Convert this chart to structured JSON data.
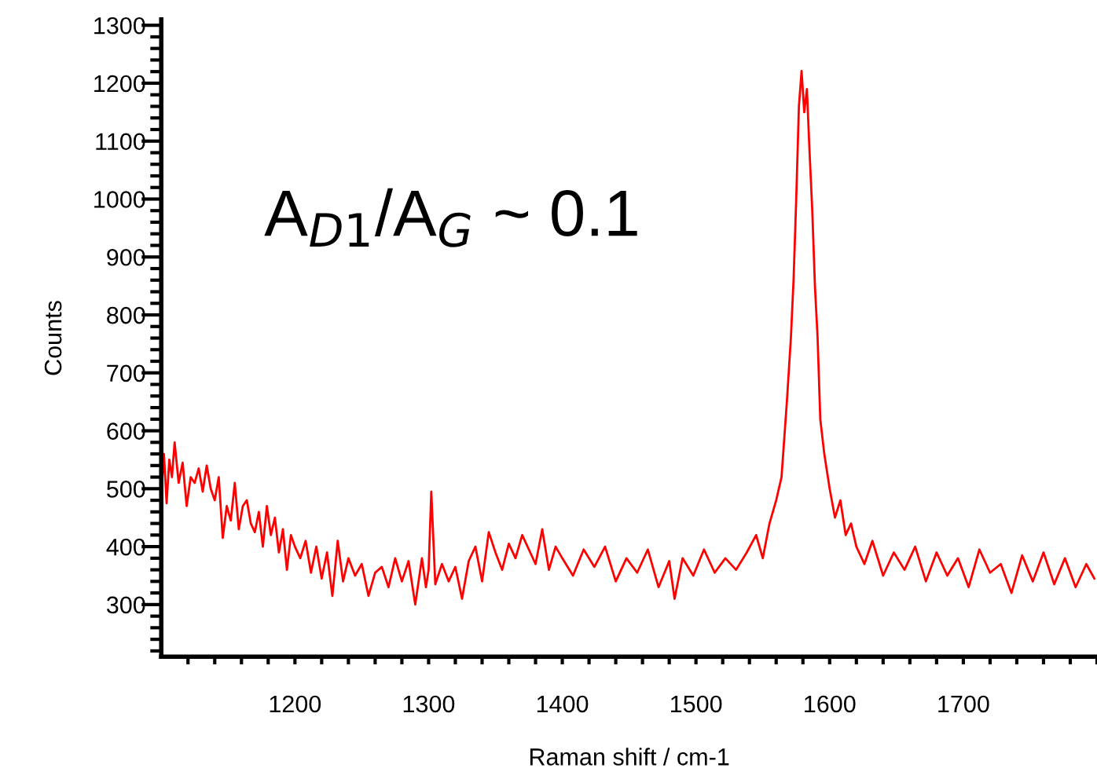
{
  "chart_data": {
    "type": "line",
    "xlabel": "Raman shift / cm-1",
    "ylabel": "Counts",
    "annotations": [
      "A$_{D1}$/A$_{G}$ ~ 0.1"
    ],
    "xlim": [
      1100,
      1800
    ],
    "ylim": [
      210,
      1310
    ],
    "xticks": [
      {
        "value": 1120,
        "label": null
      },
      {
        "value": 1140,
        "label": null
      },
      {
        "value": 1160,
        "label": null
      },
      {
        "value": 1180,
        "label": null
      },
      1200,
      {
        "value": 1220,
        "label": null
      },
      {
        "value": 1240,
        "label": null
      },
      {
        "value": 1260,
        "label": null
      },
      {
        "value": 1280,
        "label": null
      },
      1300,
      {
        "value": 1320,
        "label": null
      },
      {
        "value": 1340,
        "label": null
      },
      {
        "value": 1360,
        "label": null
      },
      {
        "value": 1380,
        "label": null
      },
      1400,
      {
        "value": 1420,
        "label": null
      },
      {
        "value": 1440,
        "label": null
      },
      {
        "value": 1460,
        "label": null
      },
      {
        "value": 1480,
        "label": null
      },
      1500,
      {
        "value": 1520,
        "label": null
      },
      {
        "value": 1540,
        "label": null
      },
      {
        "value": 1560,
        "label": null
      },
      {
        "value": 1580,
        "label": null
      },
      1600,
      {
        "value": 1620,
        "label": null
      },
      {
        "value": 1640,
        "label": null
      },
      {
        "value": 1660,
        "label": null
      },
      {
        "value": 1680,
        "label": null
      },
      1700,
      {
        "value": 1720,
        "label": null
      },
      {
        "value": 1740,
        "label": null
      },
      {
        "value": 1760,
        "label": null
      },
      {
        "value": 1780,
        "label": null
      },
      {
        "value": 1800,
        "label": null
      }
    ],
    "yticks": [
      {
        "value": 220,
        "label": null
      },
      {
        "value": 240,
        "label": null
      },
      {
        "value": 260,
        "label": null
      },
      {
        "value": 280,
        "label": null
      },
      300,
      {
        "value": 320,
        "label": null
      },
      {
        "value": 340,
        "label": null
      },
      {
        "value": 360,
        "label": null
      },
      {
        "value": 380,
        "label": null
      },
      400,
      {
        "value": 420,
        "label": null
      },
      {
        "value": 440,
        "label": null
      },
      {
        "value": 460,
        "label": null
      },
      {
        "value": 480,
        "label": null
      },
      500,
      {
        "value": 520,
        "label": null
      },
      {
        "value": 540,
        "label": null
      },
      {
        "value": 560,
        "label": null
      },
      {
        "value": 580,
        "label": null
      },
      600,
      {
        "value": 620,
        "label": null
      },
      {
        "value": 640,
        "label": null
      },
      {
        "value": 660,
        "label": null
      },
      {
        "value": 680,
        "label": null
      },
      700,
      {
        "value": 720,
        "label": null
      },
      {
        "value": 740,
        "label": null
      },
      {
        "value": 760,
        "label": null
      },
      {
        "value": 780,
        "label": null
      },
      800,
      {
        "value": 820,
        "label": null
      },
      {
        "value": 840,
        "label": null
      },
      {
        "value": 860,
        "label": null
      },
      {
        "value": 880,
        "label": null
      },
      900,
      {
        "value": 920,
        "label": null
      },
      {
        "value": 940,
        "label": null
      },
      {
        "value": 960,
        "label": null
      },
      {
        "value": 980,
        "label": null
      },
      1000,
      {
        "value": 1020,
        "label": null
      },
      {
        "value": 1040,
        "label": null
      },
      {
        "value": 1060,
        "label": null
      },
      {
        "value": 1080,
        "label": null
      },
      1100,
      {
        "value": 1120,
        "label": null
      },
      {
        "value": 1140,
        "label": null
      },
      {
        "value": 1160,
        "label": null
      },
      {
        "value": 1180,
        "label": null
      },
      1200,
      {
        "value": 1220,
        "label": null
      },
      {
        "value": 1240,
        "label": null
      },
      {
        "value": 1260,
        "label": null
      },
      {
        "value": 1280,
        "label": null
      },
      1300
    ],
    "grid": false,
    "legend": false,
    "marker": "none",
    "line_style": "solid",
    "series": [
      {
        "color": "#ff0000",
        "x": [
          1100,
          1102,
          1104,
          1106,
          1108,
          1110,
          1113,
          1116,
          1119,
          1122,
          1125,
          1128,
          1131,
          1134,
          1137,
          1140,
          1143,
          1146,
          1149,
          1152,
          1155,
          1158,
          1161,
          1164,
          1167,
          1170,
          1173,
          1176,
          1179,
          1182,
          1185,
          1188,
          1191,
          1194,
          1197,
          1200,
          1204,
          1208,
          1212,
          1216,
          1220,
          1224,
          1228,
          1232,
          1236,
          1240,
          1245,
          1250,
          1255,
          1260,
          1265,
          1270,
          1275,
          1280,
          1285,
          1290,
          1295,
          1298,
          1300,
          1302,
          1305,
          1310,
          1315,
          1320,
          1325,
          1330,
          1335,
          1340,
          1345,
          1350,
          1355,
          1360,
          1365,
          1370,
          1375,
          1380,
          1385,
          1390,
          1395,
          1400,
          1408,
          1416,
          1424,
          1432,
          1440,
          1448,
          1456,
          1464,
          1472,
          1480,
          1484,
          1490,
          1498,
          1506,
          1514,
          1522,
          1530,
          1538,
          1545,
          1550,
          1555,
          1560,
          1564,
          1568,
          1571,
          1573,
          1575,
          1577,
          1579,
          1581,
          1583,
          1585,
          1587,
          1589,
          1591,
          1593,
          1596,
          1600,
          1604,
          1608,
          1612,
          1616,
          1620,
          1626,
          1632,
          1640,
          1648,
          1656,
          1664,
          1672,
          1680,
          1688,
          1696,
          1704,
          1712,
          1720,
          1728,
          1736,
          1744,
          1752,
          1760,
          1768,
          1776,
          1784,
          1792,
          1798
        ],
        "values": [
          490,
          560,
          475,
          550,
          520,
          580,
          510,
          545,
          470,
          520,
          510,
          535,
          495,
          540,
          500,
          480,
          520,
          415,
          470,
          445,
          510,
          430,
          470,
          480,
          440,
          425,
          460,
          400,
          470,
          420,
          450,
          390,
          430,
          360,
          420,
          400,
          380,
          410,
          355,
          400,
          345,
          390,
          315,
          410,
          340,
          380,
          350,
          370,
          315,
          355,
          365,
          330,
          380,
          340,
          375,
          300,
          380,
          330,
          360,
          495,
          335,
          370,
          340,
          365,
          310,
          375,
          400,
          340,
          425,
          390,
          360,
          405,
          380,
          420,
          395,
          370,
          430,
          360,
          400,
          380,
          350,
          395,
          365,
          400,
          340,
          380,
          355,
          395,
          330,
          375,
          310,
          380,
          350,
          395,
          355,
          380,
          360,
          390,
          420,
          380,
          440,
          480,
          520,
          650,
          760,
          860,
          1000,
          1160,
          1221,
          1150,
          1190,
          1080,
          980,
          850,
          760,
          620,
          560,
          500,
          450,
          480,
          420,
          440,
          400,
          370,
          410,
          350,
          390,
          360,
          400,
          340,
          390,
          350,
          380,
          330,
          395,
          355,
          370,
          320,
          385,
          340,
          390,
          335,
          380,
          330,
          370,
          345
        ]
      }
    ]
  }
}
